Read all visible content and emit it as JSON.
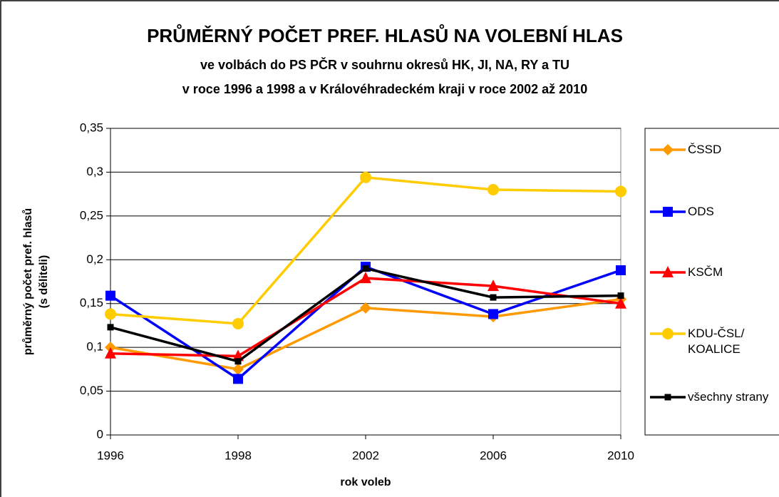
{
  "chart_data": {
    "type": "line",
    "title": "PRŮMĚRNÝ POČET PREF. HLASŮ NA VOLEBNÍ HLAS",
    "subtitle": [
      "ve volbách do PS PČR v souhrnu okresů HK, JI, NA, RY a TU",
      "v roce 1996 a 1998 a v Královéhradeckém kraji  v roce 2002 až 2010"
    ],
    "ylabel": [
      "průměrný počet pref. hlasů",
      "(s děliteli)"
    ],
    "xlabel": "rok voleb",
    "categories": [
      "1996",
      "1998",
      "2002",
      "2006",
      "2010"
    ],
    "series": [
      {
        "name": "ČSSD",
        "color": "#FF9900",
        "marker": "diamond",
        "values": [
          0.1,
          0.075,
          0.145,
          0.135,
          0.155
        ]
      },
      {
        "name": "ODS",
        "color": "#0000FF",
        "marker": "square",
        "values": [
          0.159,
          0.064,
          0.192,
          0.138,
          0.188
        ]
      },
      {
        "name": "KSČM",
        "color": "#FF0000",
        "marker": "triangle",
        "values": [
          0.093,
          0.09,
          0.179,
          0.17,
          0.15
        ]
      },
      {
        "name": "KDU-ČSL/ KOALICE",
        "color": "#FFCC00",
        "marker": "circle",
        "values": [
          0.138,
          0.127,
          0.294,
          0.28,
          0.278
        ]
      },
      {
        "name": "všechny strany",
        "color": "#000000",
        "marker": "small-square",
        "values": [
          0.123,
          0.084,
          0.19,
          0.157,
          0.159
        ]
      }
    ],
    "ylim": [
      0,
      0.35
    ],
    "yticks": [
      0,
      {
        "value": 0.05,
        "label": "0,05"
      },
      {
        "value": 0.1,
        "label": "0,1"
      },
      {
        "value": 0.15,
        "label": "0,15"
      },
      {
        "value": 0.2,
        "label": "0,2"
      },
      {
        "value": 0.25,
        "label": "0,25"
      },
      {
        "value": 0.3,
        "label": "0,3"
      },
      {
        "value": 0.35,
        "label": "0,35"
      }
    ],
    "grid": true,
    "legend": "right"
  }
}
